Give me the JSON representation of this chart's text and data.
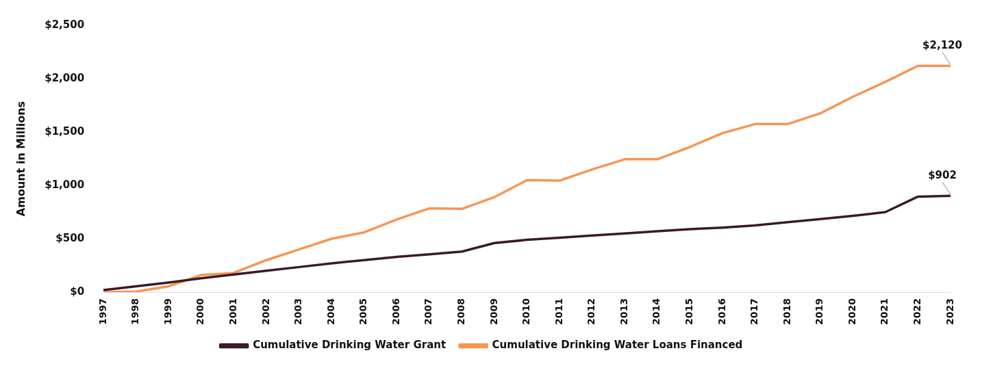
{
  "chart_data": {
    "type": "line",
    "ylabel": "Amount in Millions",
    "categories": [
      "1997",
      "1998",
      "1999",
      "2000",
      "2001",
      "2002",
      "2003",
      "2004",
      "2005",
      "2006",
      "2007",
      "2008",
      "2009",
      "2010",
      "2011",
      "2012",
      "2013",
      "2014",
      "2015",
      "2016",
      "2017",
      "2018",
      "2019",
      "2020",
      "2021",
      "2022",
      "2023"
    ],
    "series": [
      {
        "name": "Cumulative Drinking Water Grant",
        "color": "#3a1a2c",
        "values": [
          20,
          55,
          90,
          130,
          165,
          200,
          235,
          270,
          300,
          330,
          355,
          380,
          460,
          490,
          510,
          530,
          550,
          570,
          590,
          605,
          625,
          655,
          685,
          715,
          750,
          895,
          902
        ],
        "value_labels": [
          null,
          null,
          null,
          null,
          null,
          null,
          null,
          null,
          null,
          null,
          null,
          null,
          null,
          null,
          null,
          null,
          null,
          null,
          null,
          null,
          null,
          null,
          null,
          null,
          null,
          null,
          "$902"
        ]
      },
      {
        "name": "Cumulative Drinking Water Loans Financed",
        "color": "#f79552",
        "values": [
          0,
          5,
          55,
          160,
          180,
          300,
          400,
          500,
          560,
          680,
          785,
          780,
          890,
          1050,
          1045,
          1150,
          1245,
          1245,
          1360,
          1490,
          1575,
          1575,
          1675,
          1830,
          1970,
          2120,
          2120
        ],
        "value_labels": [
          null,
          null,
          null,
          null,
          null,
          null,
          null,
          null,
          null,
          null,
          null,
          null,
          null,
          null,
          null,
          null,
          null,
          null,
          null,
          null,
          null,
          null,
          null,
          null,
          null,
          null,
          "$2,120"
        ]
      }
    ],
    "ylim": [
      0,
      2500
    ],
    "yticks": [
      {
        "value": 0,
        "label": "$0"
      },
      {
        "value": 500,
        "label": "$500"
      },
      {
        "value": 1000,
        "label": "$1,000"
      },
      {
        "value": 1500,
        "label": "$1,500"
      },
      {
        "value": 2000,
        "label": "$2,000"
      },
      {
        "value": 2500,
        "label": "$2,500"
      }
    ],
    "grid": false,
    "legend": "bottom",
    "marker": "none",
    "line_style": "solid"
  }
}
